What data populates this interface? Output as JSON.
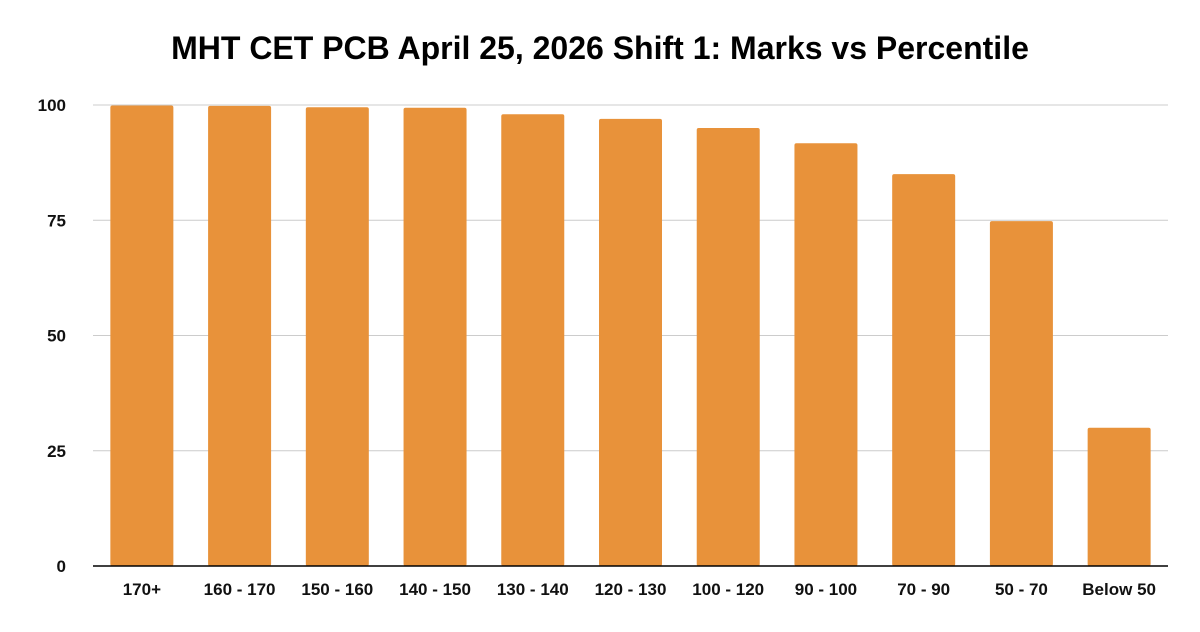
{
  "chart_data": {
    "type": "bar",
    "title": "MHT CET PCB April 25, 2026 Shift 1: Marks vs Percentile",
    "categories": [
      "170+",
      "160 - 170",
      "150 - 160",
      "140 - 150",
      "130 - 140",
      "120 - 130",
      "100 - 120",
      "90 - 100",
      "70 - 90",
      "50 - 70",
      "Below 50"
    ],
    "values": [
      99.9,
      99.8,
      99.5,
      99.4,
      98,
      97,
      95,
      91.7,
      85,
      74.8,
      30
    ],
    "ylim": [
      0,
      100
    ],
    "yticks": [
      0,
      25,
      50,
      75,
      100
    ],
    "grid": true,
    "bar_color": "#e8923a",
    "grid_color": "#cccccc",
    "axis_color": "#000000"
  }
}
